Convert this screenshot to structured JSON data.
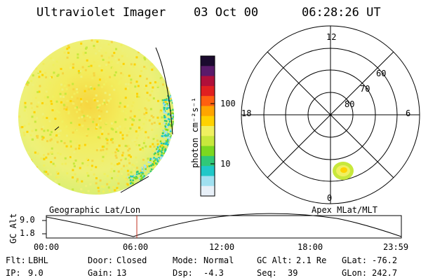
{
  "header": {
    "instrument": "Ultraviolet Imager",
    "date": "03 Oct 00",
    "time": "06:28:26 UT"
  },
  "image_panel": {
    "caption": "Geographic Lat/Lon"
  },
  "colorbar": {
    "label": "photon cm⁻²s⁻¹",
    "ticks": [
      {
        "label": "100",
        "value": 100
      },
      {
        "label": "10",
        "value": 10
      }
    ],
    "scale": "log",
    "colors_top_to_bottom": [
      "#1b0a2e",
      "#5a1a6a",
      "#b0103a",
      "#e02020",
      "#ff6010",
      "#ffa500",
      "#ffd200",
      "#f0f060",
      "#c8e83c",
      "#7cd820",
      "#30c878",
      "#20c8c8",
      "#a0e0f0",
      "#e8f0f8"
    ]
  },
  "polar_plot": {
    "caption": "Apex MLat/MLT",
    "mlt_labels": {
      "top": "12",
      "left": "18",
      "right": "6",
      "bottom": "0"
    },
    "lat_labels": [
      "60",
      "70",
      "80"
    ]
  },
  "timeline": {
    "ylabel": "GC Alt",
    "y_ticks": [
      "9.0",
      "1.8"
    ],
    "x_ticks": [
      "00:00",
      "06:00",
      "12:00",
      "18:00",
      "23:59"
    ],
    "current_time_marker": "06:28",
    "marker_color": "#c03020"
  },
  "info": {
    "filter": {
      "label": "Flt:",
      "value": "LBHL"
    },
    "ip": {
      "label": "IP:",
      "value": "9.0"
    },
    "door": {
      "label": "Door:",
      "value": "Closed"
    },
    "gain": {
      "label": "Gain:",
      "value": "13"
    },
    "mode": {
      "label": "Mode:",
      "value": "Normal"
    },
    "dsp": {
      "label": "Dsp:",
      "value": "-4.3"
    },
    "gc_alt": {
      "label": "GC Alt:",
      "value": "2.1 Re"
    },
    "seq": {
      "label": "Seq:",
      "value": "39"
    },
    "glat": {
      "label": "GLat:",
      "value": "-76.2"
    },
    "glon": {
      "label": "GLon:",
      "value": "242.7"
    }
  }
}
